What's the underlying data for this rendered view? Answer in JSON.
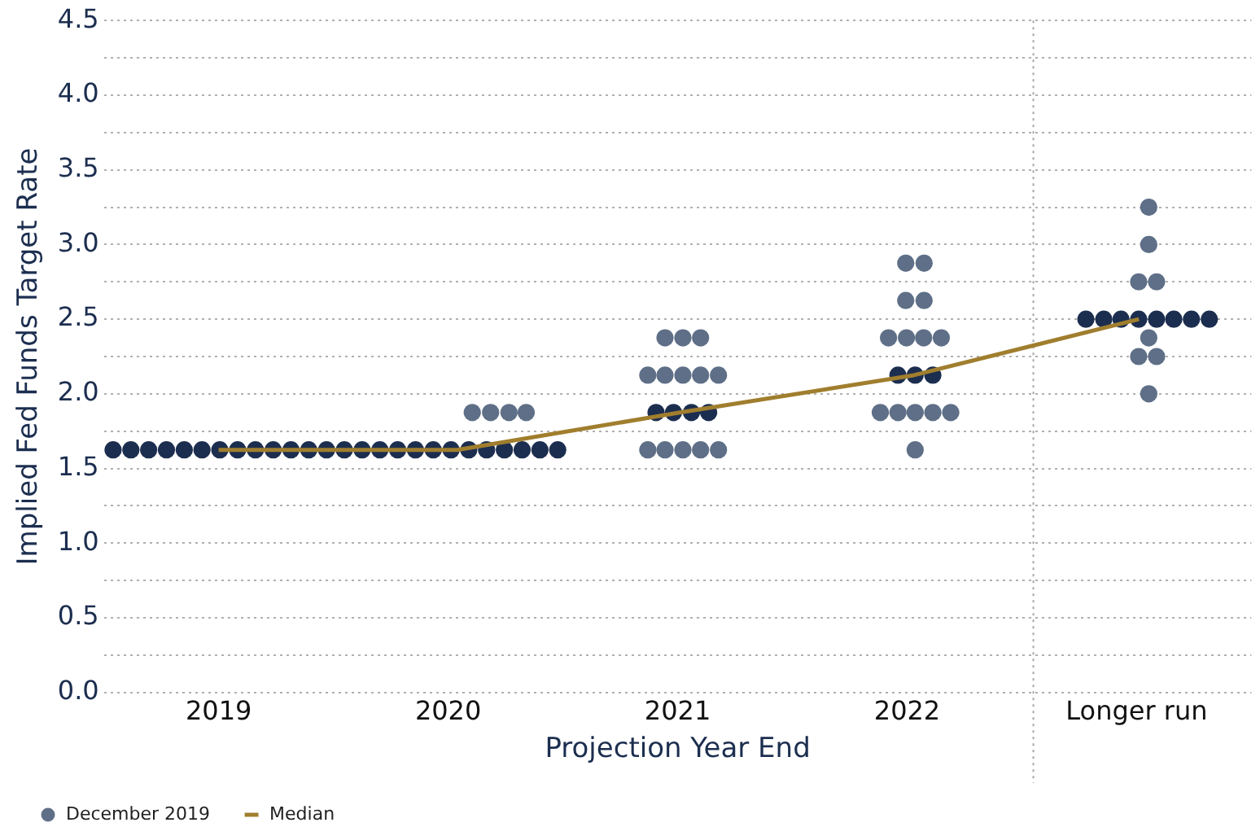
{
  "chart_data": {
    "type": "scatter",
    "xlabel": "Projection Year End",
    "ylabel": "Implied Fed Funds Target Rate",
    "xlim": [
      2018.5,
      2023.5
    ],
    "xticks": [
      2019,
      2020,
      2021,
      2022,
      {
        "value": 2023,
        "label": "Longer run"
      }
    ],
    "ylim": [
      0,
      4.5
    ],
    "yticks": [
      {
        "value": 0,
        "label": "0.0"
      },
      {
        "value": 0.25,
        "label": null
      },
      {
        "value": 0.5,
        "label": "0.5"
      },
      {
        "value": 0.75,
        "label": null
      },
      {
        "value": 1,
        "label": "1.0"
      },
      {
        "value": 1.25,
        "label": null
      },
      {
        "value": 1.5,
        "label": "1.5"
      },
      {
        "value": 1.75,
        "label": null
      },
      {
        "value": 2,
        "label": "2.0"
      },
      {
        "value": 2.25,
        "label": null
      },
      {
        "value": 2.5,
        "label": "2.5"
      },
      {
        "value": 2.75,
        "label": null
      },
      {
        "value": 3,
        "label": "3.0"
      },
      {
        "value": 3.25,
        "label": null
      },
      {
        "value": 3.5,
        "label": "3.5"
      },
      {
        "value": 3.75,
        "label": null
      },
      {
        "value": 4,
        "label": "4.0"
      },
      {
        "value": 4.25,
        "label": null
      },
      {
        "value": 4.5,
        "label": "4.5"
      }
    ],
    "grid": "y",
    "legend": "bottom left",
    "marker": "circle",
    "ref_lines": [
      {
        "axis": "x",
        "value": 2022.55,
        "label": null,
        "color": "#a6a6a6",
        "line_style": "dotted"
      }
    ],
    "series": [
      {
        "name": "December 2019",
        "color": "#5e6f87",
        "x": [
          2020.105,
          2020.185,
          2020.265,
          2020.34,
          2020.945,
          2021.023,
          2021.1,
          2020.87,
          2020.945,
          2021.023,
          2021.1,
          2021.178,
          2020.87,
          2020.945,
          2021.023,
          2021.1,
          2021.178,
          2021.994,
          2022.074,
          2021.994,
          2022.074,
          2021.919,
          2021.997,
          2022.072,
          2022.149,
          2021.883,
          2021.96,
          2022.035,
          2022.112,
          2022.19,
          2022.035,
          2023.053,
          2023.053,
          2023.009,
          2023.087,
          2023.053,
          2023.009,
          2023.087,
          2023.053
        ],
        "values": [
          1.875,
          1.875,
          1.875,
          1.875,
          2.375,
          2.375,
          2.375,
          2.125,
          2.125,
          2.125,
          2.125,
          2.125,
          1.625,
          1.625,
          1.625,
          1.625,
          1.625,
          2.875,
          2.875,
          2.625,
          2.625,
          2.375,
          2.375,
          2.375,
          2.375,
          1.875,
          1.875,
          1.875,
          1.875,
          1.875,
          1.625,
          3.25,
          3.0,
          2.75,
          2.75,
          2.375,
          2.25,
          2.25,
          2.0
        ]
      },
      {
        "color": "#1c2e4f",
        "x": [
          2018.54,
          2018.6175,
          2018.695,
          2018.7725,
          2018.85,
          2018.9275,
          2019.005,
          2019.0825,
          2019.16,
          2019.2375,
          2019.315,
          2019.3925,
          2019.47,
          2019.5475,
          2019.625,
          2019.7025,
          2019.78,
          2019.8575,
          2019.935,
          2020.0125,
          2020.09,
          2020.1675,
          2020.245,
          2020.3225,
          2020.4,
          2020.4775,
          2020.906,
          2020.982,
          2021.06,
          2021.135,
          2021.96,
          2022.035,
          2022.112,
          2022.779,
          2022.857,
          2022.932,
          2023.009,
          2023.087,
          2023.162,
          2023.239,
          2023.317
        ],
        "values": [
          1.625,
          1.625,
          1.625,
          1.625,
          1.625,
          1.625,
          1.625,
          1.625,
          1.625,
          1.625,
          1.625,
          1.625,
          1.625,
          1.625,
          1.625,
          1.625,
          1.625,
          1.625,
          1.625,
          1.625,
          1.625,
          1.625,
          1.625,
          1.625,
          1.625,
          1.625,
          1.875,
          1.875,
          1.875,
          1.875,
          2.125,
          2.125,
          2.125,
          2.5,
          2.5,
          2.5,
          2.5,
          2.5,
          2.5,
          2.5,
          2.5
        ]
      },
      {
        "name": "Median",
        "type": "line",
        "marker": "none",
        "line_style": "solid",
        "color": "#a07e2e",
        "x": [
          2019,
          2020.04,
          2021.01,
          2022.03,
          2023.01
        ],
        "values": [
          1.625,
          1.625,
          1.875,
          2.125,
          2.5
        ]
      }
    ]
  }
}
